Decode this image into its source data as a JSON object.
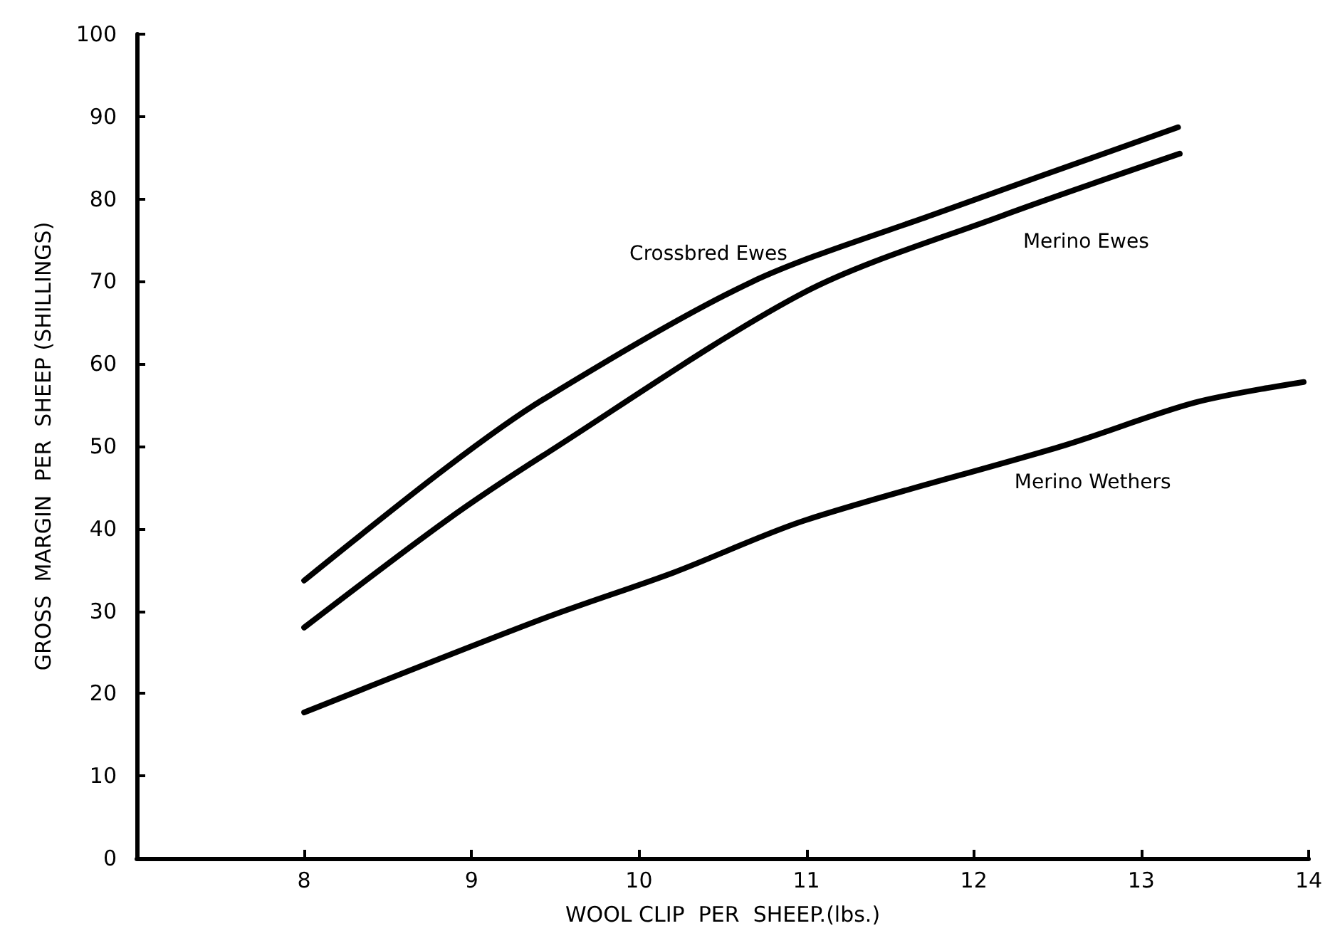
{
  "chart_data": {
    "type": "line",
    "xlabel": "WOOL CLIP  PER  SHEEP.(lbs.)",
    "ylabel": "GROSS  MARGIN  PER  SHEEP (SHILLINGS)",
    "xlim": [
      7,
      14
    ],
    "xticks": [
      8,
      9,
      10,
      11,
      12,
      13,
      14
    ],
    "ylim": [
      0,
      100
    ],
    "yticks": [
      0,
      10,
      20,
      30,
      40,
      50,
      60,
      70,
      80,
      90,
      100
    ],
    "grid": false,
    "legend": false,
    "marker": "none",
    "line_style": "solid",
    "series": [
      {
        "name": "Crossbred Ewes",
        "color": "#000000",
        "x": [
          8,
          8.85,
          9.43,
          10.67,
          11.77,
          13.22
        ],
        "values": [
          33.7,
          47.4,
          55.7,
          69.9,
          78.2,
          88.7
        ]
      },
      {
        "name": "Merino Ewes",
        "color": "#000000",
        "x": [
          8,
          8.85,
          9.43,
          10.99,
          12.16,
          13.23
        ],
        "values": [
          28.0,
          41.0,
          48.9,
          68.7,
          77.9,
          85.5
        ]
      },
      {
        "name": "Merino Wethers",
        "color": "#000000",
        "x": [
          8,
          9.43,
          10.21,
          10.99,
          12.54,
          13.32,
          13.97
        ],
        "values": [
          17.7,
          29.1,
          34.7,
          41.0,
          50.1,
          55.3,
          57.8
        ]
      }
    ]
  }
}
